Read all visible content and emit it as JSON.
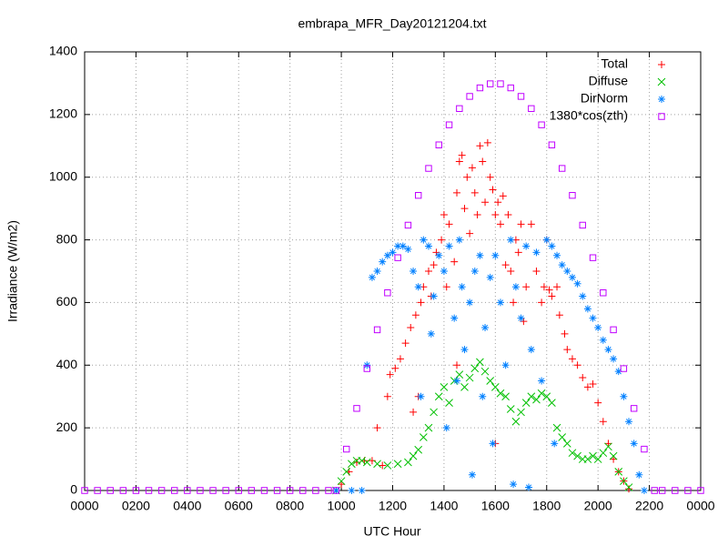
{
  "chart_data": {
    "type": "scatter",
    "title": "embrapa_MFR_Day20121204.txt",
    "x_label": "UTC Hour",
    "y_label": "Irradiance (W/m2)",
    "xlim": [
      0,
      24
    ],
    "ylim": [
      0,
      1400
    ],
    "xticks": [
      {
        "value": 0,
        "label": "0000"
      },
      {
        "value": 2,
        "label": "0200"
      },
      {
        "value": 4,
        "label": "0400"
      },
      {
        "value": 6,
        "label": "0600"
      },
      {
        "value": 8,
        "label": "0800"
      },
      {
        "value": 10,
        "label": "1000"
      },
      {
        "value": 12,
        "label": "1200"
      },
      {
        "value": 14,
        "label": "1400"
      },
      {
        "value": 16,
        "label": "1600"
      },
      {
        "value": 18,
        "label": "1800"
      },
      {
        "value": 20,
        "label": "2000"
      },
      {
        "value": 22,
        "label": "2200"
      },
      {
        "value": 24,
        "label": "0000"
      }
    ],
    "yticks": [
      0,
      200,
      400,
      600,
      800,
      1000,
      1200,
      1400
    ],
    "grid": true,
    "legend": "top-right",
    "series": [
      {
        "name": "Total",
        "color": "#ff0000",
        "marker": "plus",
        "x": [
          9.8,
          10.0,
          10.3,
          10.6,
          10.9,
          11.2,
          11.4,
          11.6,
          11.8,
          11.9,
          12.1,
          12.3,
          12.5,
          12.7,
          12.8,
          12.9,
          13.0,
          13.1,
          13.2,
          13.4,
          13.5,
          13.6,
          13.7,
          13.9,
          14.0,
          14.1,
          14.2,
          14.4,
          14.5,
          14.5,
          14.6,
          14.7,
          14.8,
          14.9,
          15.0,
          15.1,
          15.2,
          15.3,
          15.4,
          15.5,
          15.6,
          15.7,
          15.8,
          15.9,
          16.0,
          16.0,
          16.1,
          16.2,
          16.3,
          16.4,
          16.5,
          16.6,
          16.7,
          16.8,
          16.9,
          17.0,
          17.1,
          17.2,
          17.4,
          17.6,
          17.8,
          17.9,
          18.0,
          18.1,
          18.2,
          18.4,
          18.5,
          18.7,
          18.8,
          19.0,
          19.2,
          19.4,
          19.6,
          19.8,
          20.0,
          20.2,
          20.4,
          20.6,
          20.8,
          21.0,
          21.2
        ],
        "values": [
          0,
          20,
          60,
          90,
          95,
          95,
          200,
          80,
          300,
          370,
          390,
          420,
          470,
          520,
          250,
          560,
          300,
          600,
          650,
          700,
          620,
          720,
          760,
          800,
          880,
          650,
          850,
          730,
          950,
          400,
          1050,
          1070,
          900,
          1000,
          820,
          1030,
          950,
          880,
          1100,
          1050,
          920,
          1110,
          1000,
          960,
          880,
          150,
          920,
          850,
          940,
          720,
          880,
          700,
          600,
          800,
          760,
          850,
          540,
          650,
          850,
          700,
          600,
          650,
          800,
          640,
          620,
          650,
          560,
          500,
          450,
          420,
          400,
          360,
          330,
          340,
          280,
          220,
          150,
          100,
          60,
          30,
          5
        ]
      },
      {
        "name": "Diffuse",
        "color": "#00c000",
        "marker": "cross",
        "x": [
          9.8,
          10.0,
          10.2,
          10.4,
          10.6,
          10.8,
          11.0,
          11.4,
          11.8,
          12.2,
          12.6,
          12.8,
          13.0,
          13.2,
          13.4,
          13.6,
          13.8,
          14.0,
          14.2,
          14.4,
          14.6,
          14.8,
          15.0,
          15.2,
          15.4,
          15.6,
          15.8,
          16.0,
          16.2,
          16.4,
          16.6,
          16.8,
          17.0,
          17.2,
          17.4,
          17.6,
          17.8,
          18.0,
          18.2,
          18.4,
          18.6,
          18.8,
          19.0,
          19.2,
          19.4,
          19.6,
          19.8,
          20.0,
          20.2,
          20.4,
          20.6,
          20.8,
          21.0,
          21.2
        ],
        "values": [
          0,
          30,
          60,
          85,
          95,
          95,
          90,
          85,
          80,
          85,
          90,
          110,
          130,
          170,
          200,
          250,
          300,
          330,
          280,
          350,
          370,
          330,
          360,
          390,
          410,
          380,
          350,
          330,
          310,
          300,
          260,
          220,
          250,
          280,
          300,
          290,
          310,
          300,
          280,
          200,
          170,
          150,
          120,
          110,
          100,
          100,
          110,
          100,
          120,
          140,
          110,
          60,
          30,
          10
        ]
      },
      {
        "name": "DirNorm",
        "color": "#0080ff",
        "marker": "star",
        "x": [
          9.8,
          10.4,
          10.8,
          11.0,
          11.2,
          11.4,
          11.6,
          11.8,
          12.0,
          12.2,
          12.4,
          12.6,
          12.8,
          13.0,
          13.1,
          13.2,
          13.4,
          13.5,
          13.6,
          13.8,
          14.0,
          14.1,
          14.2,
          14.4,
          14.5,
          14.6,
          14.7,
          14.8,
          15.0,
          15.1,
          15.2,
          15.4,
          15.5,
          15.6,
          15.8,
          15.9,
          16.0,
          16.2,
          16.4,
          16.6,
          16.7,
          16.8,
          17.0,
          17.2,
          17.3,
          17.4,
          17.6,
          17.8,
          18.0,
          18.2,
          18.3,
          18.4,
          18.6,
          18.8,
          19.0,
          19.2,
          19.4,
          19.6,
          19.8,
          20.0,
          20.2,
          20.4,
          20.6,
          20.8,
          21.0,
          21.2,
          21.4,
          21.6,
          21.8
        ],
        "values": [
          0,
          0,
          0,
          400,
          680,
          700,
          730,
          750,
          760,
          780,
          780,
          770,
          700,
          650,
          300,
          800,
          780,
          500,
          620,
          750,
          700,
          200,
          780,
          550,
          350,
          800,
          650,
          450,
          600,
          50,
          700,
          750,
          300,
          520,
          680,
          150,
          750,
          600,
          400,
          800,
          20,
          650,
          550,
          780,
          10,
          450,
          760,
          350,
          800,
          780,
          150,
          750,
          720,
          700,
          680,
          660,
          620,
          580,
          550,
          520,
          480,
          450,
          420,
          380,
          300,
          220,
          150,
          50,
          0
        ]
      },
      {
        "name": "1380*cos(zth)",
        "color": "#c000ff",
        "marker": "square",
        "x": [
          0,
          0.5,
          1,
          1.5,
          2,
          2.5,
          3,
          3.5,
          4,
          4.5,
          5,
          5.5,
          6,
          6.5,
          7,
          7.5,
          8,
          8.5,
          9,
          9.5,
          9.8,
          10.2,
          10.6,
          11.0,
          11.4,
          11.8,
          12.2,
          12.6,
          13.0,
          13.4,
          13.8,
          14.2,
          14.6,
          15.0,
          15.4,
          15.8,
          16.2,
          16.6,
          17.0,
          17.4,
          17.8,
          18.2,
          18.6,
          19.0,
          19.4,
          19.8,
          20.2,
          20.6,
          21.0,
          21.4,
          21.8,
          22.2,
          22.5,
          23,
          23.5,
          24
        ],
        "values": [
          0,
          0,
          0,
          0,
          0,
          0,
          0,
          0,
          0,
          0,
          0,
          0,
          0,
          0,
          0,
          0,
          0,
          0,
          0,
          0,
          0,
          132,
          262,
          389,
          513,
          631,
          743,
          847,
          942,
          1028,
          1103,
          1167,
          1219,
          1258,
          1285,
          1298,
          1298,
          1285,
          1258,
          1219,
          1167,
          1103,
          1028,
          942,
          847,
          743,
          631,
          513,
          389,
          262,
          132,
          0,
          0,
          0,
          0,
          0
        ]
      }
    ]
  }
}
